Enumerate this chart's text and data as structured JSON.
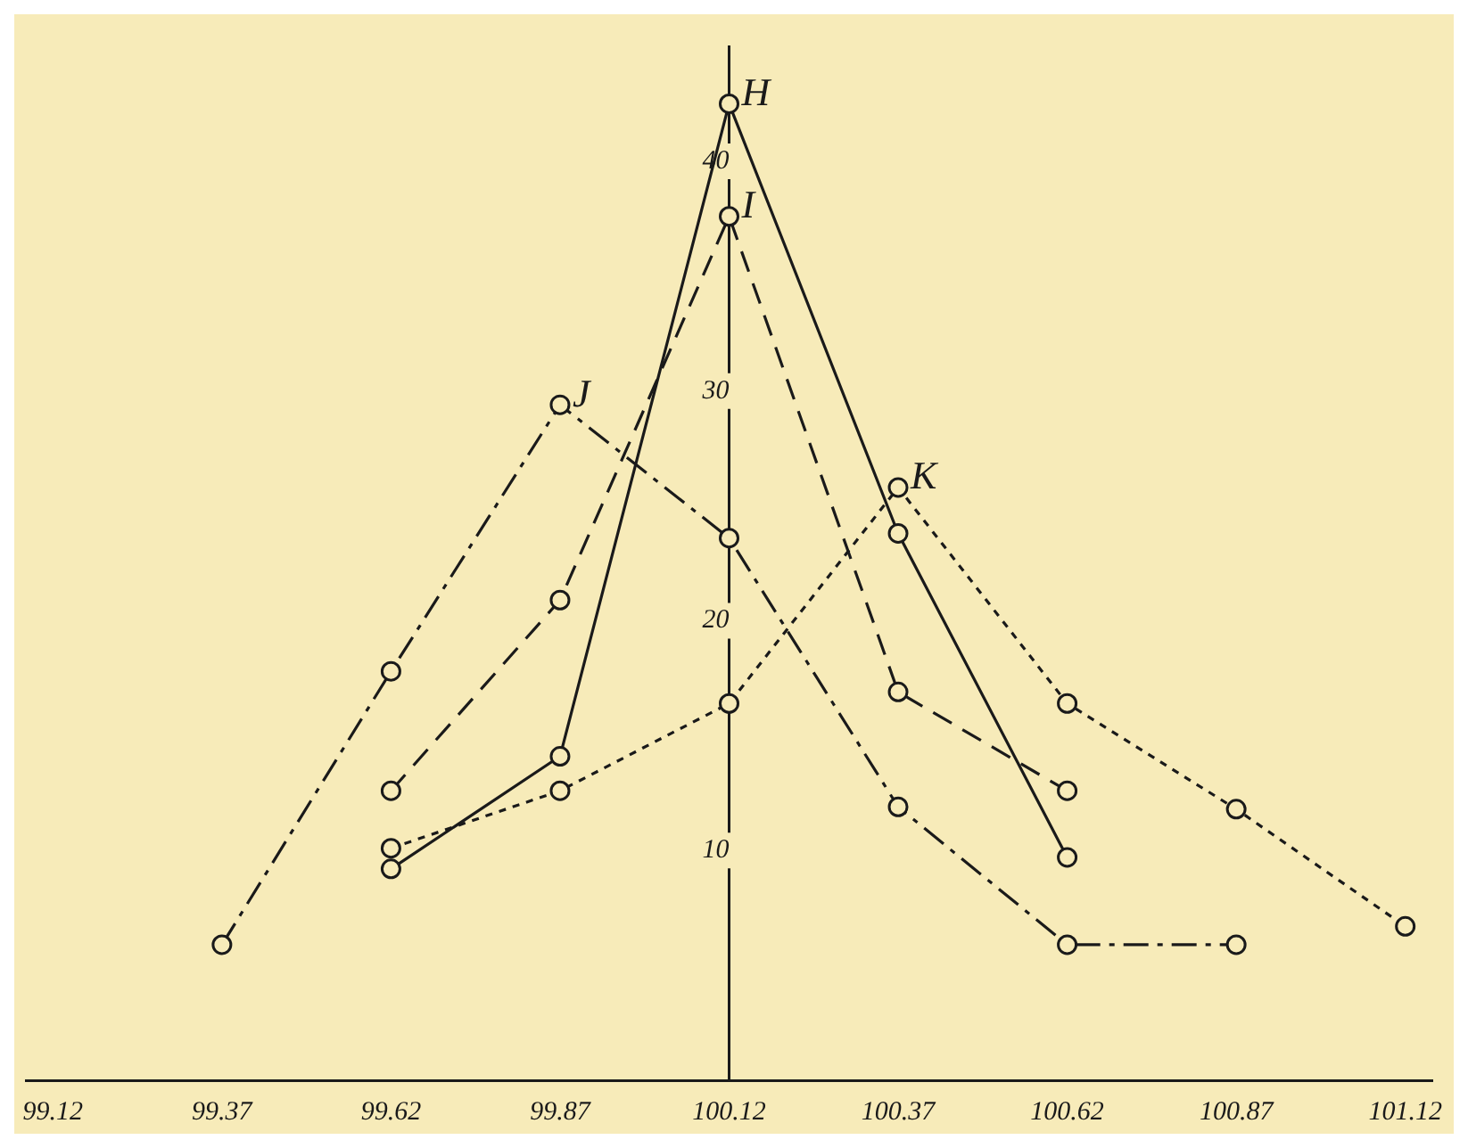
{
  "chart_data": {
    "type": "line",
    "xlim": [
      99.08,
      101.16
    ],
    "ylim": [
      0,
      45
    ],
    "xticks": [
      99.12,
      99.37,
      99.62,
      99.87,
      100.12,
      100.37,
      100.62,
      100.87,
      101.12
    ],
    "yticks": [
      10,
      20,
      30,
      40
    ],
    "grid": false,
    "legend": false,
    "marker": "circle",
    "series": [
      {
        "name": "H",
        "color": "#1a1a1a",
        "line_style": "solid",
        "x": [
          99.62,
          99.87,
          100.12,
          100.37,
          100.62
        ],
        "values": [
          9.2,
          14.1,
          42.5,
          23.8,
          9.7
        ]
      },
      {
        "name": "I",
        "color": "#1a1a1a",
        "line_style": "dashed",
        "x": [
          99.62,
          99.87,
          100.12,
          100.37,
          100.62
        ],
        "values": [
          12.6,
          20.9,
          37.6,
          16.9,
          12.6
        ]
      },
      {
        "name": "J",
        "color": "#1a1a1a",
        "line_style": "dashdot",
        "x": [
          99.37,
          99.62,
          99.87,
          100.12,
          100.37,
          100.62,
          100.87
        ],
        "values": [
          5.9,
          17.8,
          29.4,
          23.6,
          11.9,
          5.9,
          5.9
        ]
      },
      {
        "name": "K",
        "color": "#1a1a1a",
        "line_style": "dotted",
        "x": [
          99.62,
          99.87,
          100.12,
          100.37,
          100.62,
          100.87,
          101.12
        ],
        "values": [
          10.1,
          12.6,
          16.4,
          25.8,
          16.4,
          11.8,
          6.7
        ]
      }
    ]
  }
}
